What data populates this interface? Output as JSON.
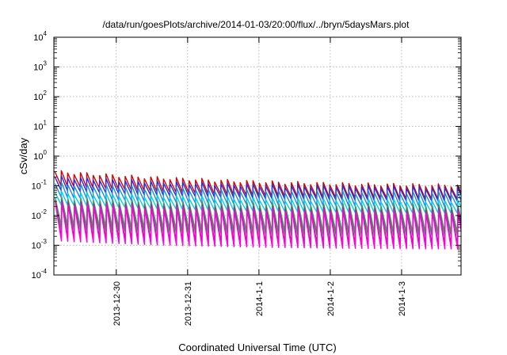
{
  "chart_data": {
    "type": "line",
    "title": "/data/run/goesPlots/archive/2014-01-03/20:00/flux/../bryn/5daysMars.plot",
    "xlabel": "Coordinated Universal Time (UTC)",
    "ylabel": "cSv/day",
    "y_scale": "log",
    "ylim": [
      0.0001,
      10000
    ],
    "y_ticks": [
      {
        "value": 0.0001,
        "base": "10",
        "exp": "-4"
      },
      {
        "value": 0.001,
        "base": "10",
        "exp": "-3"
      },
      {
        "value": 0.01,
        "base": "10",
        "exp": "-2"
      },
      {
        "value": 0.1,
        "base": "10",
        "exp": "-1"
      },
      {
        "value": 1,
        "base": "10",
        "exp": "0"
      },
      {
        "value": 10,
        "base": "10",
        "exp": "1"
      },
      {
        "value": 100,
        "base": "10",
        "exp": "2"
      },
      {
        "value": 1000,
        "base": "10",
        "exp": "3"
      },
      {
        "value": 10000,
        "base": "10",
        "exp": "4"
      }
    ],
    "xlim": [
      "2013-12-29T03:00",
      "2014-01-03T20:00"
    ],
    "x_ticks": [
      {
        "value": "2013-12-30T00:00",
        "label": "2013-12-30"
      },
      {
        "value": "2013-12-31T00:00",
        "label": "2013-12-31"
      },
      {
        "value": "2014-01-01T00:00",
        "label": "2014-1-1"
      },
      {
        "value": "2014-01-02T00:00",
        "label": "2014-1-2"
      },
      {
        "value": "2014-01-03T00:00",
        "label": "2014-1-3"
      }
    ],
    "grid": true,
    "pattern_period_hours": 2.15,
    "series": [
      {
        "color": "#dd0000",
        "peak_start": 0.3,
        "peak_end": 0.095,
        "ratio": 2.9
      },
      {
        "color": "#2a2ad8",
        "peak_start": 0.2,
        "peak_end": 0.082,
        "ratio": 2.8
      },
      {
        "color": "#1e88e0",
        "peak_start": 0.12,
        "peak_end": 0.055,
        "ratio": 2.9
      },
      {
        "color": "#00d0e8",
        "peak_start": 0.06,
        "peak_end": 0.03,
        "ratio": 2.6
      },
      {
        "color": "#888888",
        "peak_start": 0.04,
        "peak_end": 0.022,
        "ratio": 8.5
      },
      {
        "color": "#22a050",
        "peak_start": 0.035,
        "peak_end": 0.02,
        "ratio": 10
      },
      {
        "color": "#b02090",
        "peak_start": 0.03,
        "peak_end": 0.016,
        "ratio": 16
      },
      {
        "color": "#ff00e0",
        "peak_start": 0.025,
        "peak_end": 0.013,
        "ratio": 18
      }
    ]
  }
}
